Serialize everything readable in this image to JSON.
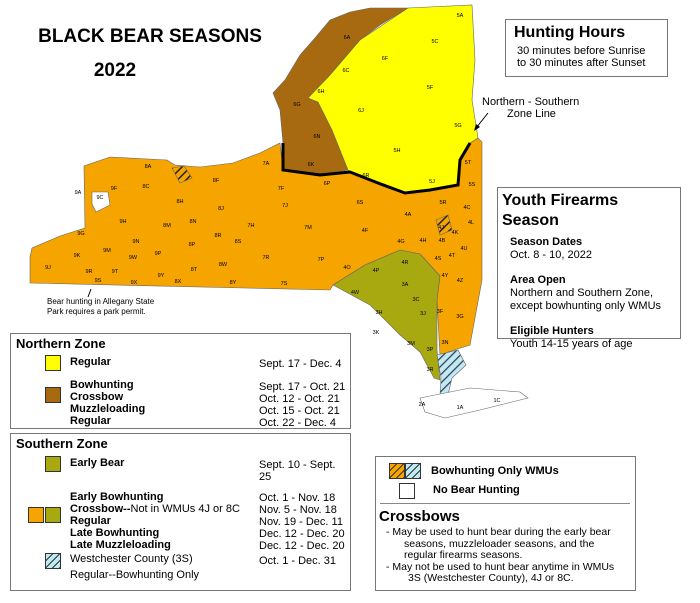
{
  "title": "BLACK BEAR SEASONS",
  "year": "2022",
  "colors": {
    "northern_regular": "#ffff00",
    "northern_bow": "#a86a10",
    "southern_early": "#a8a810",
    "southern_regular": "#f5a400",
    "westchester": "#bfeaf2",
    "zone_line": "#000000"
  },
  "hunting_hours": {
    "title": "Hunting Hours",
    "line1": "30 minutes before Sunrise",
    "line2": "to 30 minutes after Sunset"
  },
  "zone_line_label": {
    "line1": "Northern - Southern",
    "line2": "Zone Line"
  },
  "youth": {
    "title": "Youth Firearms Season",
    "dates_heading": "Season Dates",
    "dates": "Oct. 8 - 10, 2022",
    "area_heading": "Area Open",
    "area1": "Northern and Southern Zone,",
    "area2": "except bowhunting only WMUs",
    "eligible_heading": "Eligible Hunters",
    "eligible": "Youth 14-15 years of age"
  },
  "allegany_note": {
    "line1": "Bear hunting in Allegany State",
    "line2": "Park requires a park permit."
  },
  "northern_zone": {
    "title": "Northern Zone",
    "regular": {
      "label": "Regular",
      "dates": "Sept. 17 - Dec. 4"
    },
    "group": [
      {
        "label": "Bowhunting",
        "dates": "Sept. 17 - Oct. 21"
      },
      {
        "label": "Crossbow",
        "dates": "Oct. 12 - Oct. 21"
      },
      {
        "label": "Muzzleloading",
        "dates": "Oct. 15 - Oct. 21"
      },
      {
        "label": "Regular",
        "dates": "Oct. 22 - Dec. 4"
      }
    ]
  },
  "southern_zone": {
    "title": "Southern Zone",
    "early": {
      "label": "Early Bear",
      "dates": "Sept. 10 - Sept. 25"
    },
    "group": [
      {
        "label": "Early Bowhunting",
        "note": "",
        "dates": "Oct. 1 - Nov. 18"
      },
      {
        "label": "Crossbow--",
        "note": "Not in WMUs 4J or 8C",
        "dates": "Nov. 5 - Nov. 18"
      },
      {
        "label": "Regular",
        "note": "",
        "dates": "Nov. 19 - Dec. 11"
      },
      {
        "label": "Late Bowhunting",
        "note": "",
        "dates": "Dec. 12 - Dec. 20"
      },
      {
        "label": "Late Muzzleloading",
        "note": "",
        "dates": "Dec. 12 - Dec. 20"
      }
    ],
    "westchester": {
      "line1": "Westchester County (3S)",
      "line2": "Regular--Bowhunting Only",
      "dates": "Oct. 1 - Dec. 31"
    }
  },
  "other_legend": {
    "bow_only": "Bowhunting Only WMUs",
    "no_hunting": "No Bear Hunting"
  },
  "crossbows": {
    "title": "Crossbows",
    "lines": [
      "- May be used to hunt bear during the early bear",
      "seasons, muzzleloader seasons, and the",
      "regular firearms seasons.",
      "- May not be used to hunt bear anytime in WMUs",
      "3S (Westchester County), 4J or 8C."
    ]
  },
  "wmu_labels": [
    "5A",
    "5C",
    "6F",
    "6A",
    "6C",
    "6H",
    "6G",
    "6J",
    "5F",
    "5G",
    "6N",
    "5H",
    "6K",
    "5J",
    "5T",
    "5S",
    "7A",
    "6P",
    "6R",
    "8A",
    "9A",
    "9C",
    "9F",
    "8C",
    "8F",
    "7F",
    "8H",
    "8J",
    "7J",
    "6S",
    "5R",
    "4C",
    "4A",
    "4L",
    "4J",
    "4K",
    "4B",
    "4G",
    "4H",
    "4F",
    "7M",
    "7H",
    "8N",
    "8M",
    "9H",
    "9G",
    "8R",
    "8S",
    "8P",
    "9N",
    "9M",
    "9P",
    "9W",
    "9K",
    "9J",
    "9R",
    "9T",
    "9S",
    "9X",
    "9Y",
    "8X",
    "8T",
    "8W",
    "8Y",
    "7R",
    "7P",
    "7S",
    "4O",
    "4P",
    "4R",
    "4S",
    "4T",
    "4U",
    "3A",
    "4Y",
    "4Z",
    "4W",
    "3C",
    "3H",
    "3J",
    "3F",
    "3G",
    "3K",
    "3M",
    "3N",
    "3P",
    "3R",
    "2A",
    "1A",
    "1C"
  ]
}
